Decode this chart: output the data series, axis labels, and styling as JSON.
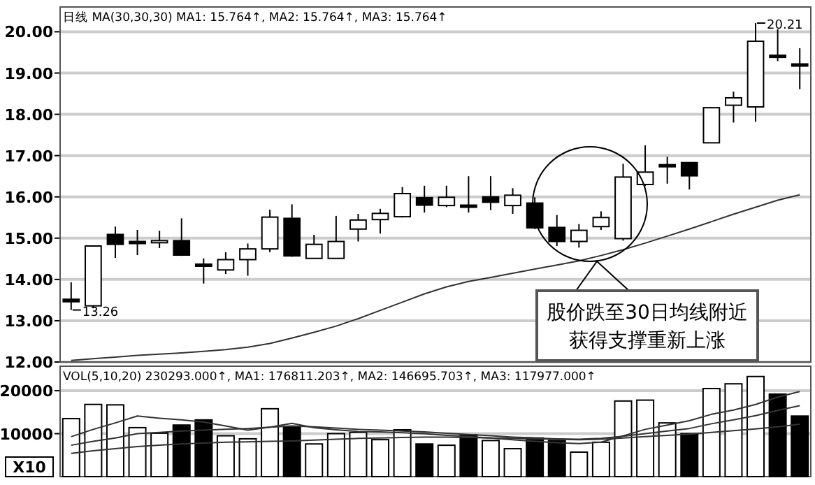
{
  "chart_data": [
    {
      "type": "candlestick",
      "title": "日线 MA(30,30,30) MA1: 15.764↑, MA2: 15.764↑, MA3: 15.764↑",
      "categories": [
        null,
        null,
        null,
        null,
        null,
        null,
        null,
        null,
        null,
        null,
        null,
        null,
        null,
        null,
        null,
        null,
        null,
        null,
        null,
        null,
        null,
        null,
        null,
        null,
        null,
        null,
        null,
        null,
        null,
        null,
        null,
        null,
        null,
        null
      ],
      "ohlc": [
        [
          13.52,
          13.93,
          13.26,
          13.46
        ],
        [
          13.36,
          14.81,
          13.3,
          14.81
        ],
        [
          15.09,
          15.28,
          14.52,
          14.85
        ],
        [
          14.92,
          15.2,
          14.59,
          14.9
        ],
        [
          14.89,
          15.18,
          14.76,
          14.94
        ],
        [
          14.94,
          15.48,
          14.57,
          14.59
        ],
        [
          14.37,
          14.51,
          13.9,
          14.35
        ],
        [
          14.23,
          14.66,
          14.13,
          14.48
        ],
        [
          14.48,
          14.87,
          14.09,
          14.74
        ],
        [
          14.74,
          15.69,
          14.66,
          15.51
        ],
        [
          15.48,
          15.82,
          14.55,
          14.57
        ],
        [
          14.51,
          15.08,
          14.5,
          14.85
        ],
        [
          14.51,
          15.54,
          14.51,
          14.92
        ],
        [
          15.22,
          15.59,
          14.92,
          15.44
        ],
        [
          15.45,
          15.71,
          15.11,
          15.6
        ],
        [
          15.52,
          16.24,
          15.5,
          16.08
        ],
        [
          15.98,
          16.27,
          15.62,
          15.8
        ],
        [
          15.79,
          16.27,
          15.75,
          15.99
        ],
        [
          15.8,
          16.5,
          15.62,
          15.77
        ],
        [
          16.0,
          16.5,
          15.68,
          15.87
        ],
        [
          15.79,
          16.21,
          15.59,
          16.04
        ],
        [
          15.85,
          15.99,
          15.22,
          15.25
        ],
        [
          15.26,
          15.56,
          14.81,
          14.92
        ],
        [
          14.92,
          15.34,
          14.77,
          15.19
        ],
        [
          15.28,
          15.65,
          15.2,
          15.5
        ],
        [
          14.99,
          16.8,
          14.94,
          16.48
        ],
        [
          16.3,
          17.25,
          16.26,
          16.6
        ],
        [
          16.78,
          16.97,
          16.32,
          16.76
        ],
        [
          16.83,
          16.83,
          16.18,
          16.51
        ],
        [
          17.31,
          18.16,
          17.31,
          18.16
        ],
        [
          18.22,
          18.55,
          17.8,
          18.4
        ],
        [
          18.18,
          20.21,
          17.82,
          19.77
        ],
        [
          19.43,
          20.06,
          19.29,
          19.41
        ],
        [
          19.22,
          19.6,
          18.61,
          19.2
        ]
      ],
      "series": [
        {
          "type": "line",
          "color": "#333333",
          "values": [
            12.04,
            12.08,
            12.12,
            12.16,
            12.19,
            12.22,
            12.26,
            12.3,
            12.36,
            12.45,
            12.58,
            12.72,
            12.87,
            13.05,
            13.25,
            13.45,
            13.65,
            13.82,
            13.95,
            14.05,
            14.15,
            14.25,
            14.35,
            14.45,
            14.58,
            14.72,
            14.88,
            15.05,
            15.22,
            15.4,
            15.58,
            15.75,
            15.92,
            16.05
          ]
        }
      ],
      "ylim": [
        12,
        20.6
      ],
      "yticks": [
        {
          "value": 12,
          "label": "12.00"
        },
        {
          "value": 13,
          "label": "13.00"
        },
        {
          "value": 14,
          "label": "14.00"
        },
        {
          "value": 15,
          "label": "15.00"
        },
        {
          "value": 16,
          "label": "16.00"
        },
        {
          "value": 17,
          "label": "17.00"
        },
        {
          "value": 18,
          "label": "18.00"
        },
        {
          "value": 19,
          "label": "19.00"
        },
        {
          "value": 20,
          "label": "20.00"
        }
      ],
      "grid": "y",
      "annotations": [
        "13.26",
        "20.21",
        "股价跌至30日均线附近",
        "获得支撑重新上涨"
      ]
    },
    {
      "type": "bar",
      "title": "VOL(5,10,20) 230293.000↑, MA1: 176811.203↑, MA2: 146695.703↑, MA3: 117977.000↑",
      "ylabel": "X10",
      "categories": [
        null,
        null,
        null,
        null,
        null,
        null,
        null,
        null,
        null,
        null,
        null,
        null,
        null,
        null,
        null,
        null,
        null,
        null,
        null,
        null,
        null,
        null,
        null,
        null,
        null,
        null,
        null,
        null,
        null,
        null,
        null,
        null,
        null,
        null
      ],
      "series": [
        {
          "type": "bar",
          "values": [
            13500,
            16800,
            16700,
            11400,
            10100,
            12000,
            13200,
            9500,
            8800,
            15800,
            11600,
            7600,
            10000,
            10300,
            8600,
            10900,
            7600,
            7300,
            9700,
            8400,
            6500,
            9000,
            8400,
            5700,
            8000,
            17600,
            17800,
            12500,
            10000,
            20500,
            21600,
            23300,
            19200,
            14100
          ],
          "colors": [
            "#ffffff",
            "#ffffff",
            "#ffffff",
            "#ffffff",
            "#ffffff",
            "#000000",
            "#000000",
            "#ffffff",
            "#ffffff",
            "#ffffff",
            "#000000",
            "#ffffff",
            "#ffffff",
            "#ffffff",
            "#ffffff",
            "#ffffff",
            "#000000",
            "#ffffff",
            "#000000",
            "#ffffff",
            "#ffffff",
            "#000000",
            "#000000",
            "#ffffff",
            "#ffffff",
            "#ffffff",
            "#ffffff",
            "#ffffff",
            "#000000",
            "#ffffff",
            "#ffffff",
            "#ffffff",
            "#000000",
            "#000000"
          ]
        },
        {
          "type": "line",
          "color": "#333333",
          "values": [
            9300,
            11000,
            12500,
            14100,
            13600,
            13200,
            12700,
            11800,
            10800,
            11500,
            12400,
            11400,
            10900,
            10500,
            10400,
            10200,
            10000,
            9600,
            9300,
            9000,
            8600,
            8200,
            7900,
            7700,
            8000,
            9500,
            11000,
            12000,
            13000,
            14500,
            15500,
            16800,
            18500,
            19800
          ]
        },
        {
          "type": "line",
          "color": "#333333",
          "values": [
            7300,
            8200,
            9000,
            10000,
            10300,
            10600,
            10800,
            11000,
            11200,
            11500,
            11800,
            11600,
            11300,
            11000,
            10800,
            10600,
            10400,
            10100,
            9800,
            9500,
            9200,
            9000,
            8800,
            8700,
            8900,
            9400,
            10000,
            10600,
            11200,
            12300,
            13200,
            14200,
            15400,
            16500
          ]
        },
        {
          "type": "line",
          "color": "#333333",
          "values": [
            5400,
            6000,
            6500,
            7000,
            7300,
            7600,
            7800,
            8000,
            8100,
            8200,
            8300,
            8500,
            8700,
            8900,
            9000,
            9100,
            9200,
            9200,
            9100,
            9000,
            8900,
            8800,
            8700,
            8600,
            8700,
            9000,
            9300,
            9600,
            9900,
            10300,
            10700,
            11100,
            11600,
            12200
          ]
        }
      ],
      "ylim": [
        0,
        25700
      ],
      "yticks": [
        10000,
        20000
      ],
      "grid": "y"
    }
  ]
}
